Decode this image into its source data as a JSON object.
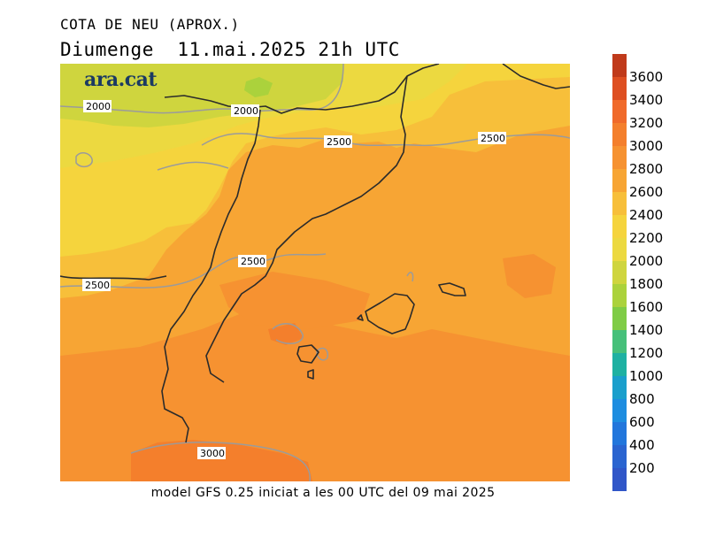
{
  "title": "COTA DE NEU (APROX.)",
  "subtitle": "Diumenge  11.mai.2025 21h UTC",
  "logo": "ara.cat",
  "caption": "model GFS 0.25 iniciat a les 00 UTC del 09 mai 2025",
  "contour_labels": [
    "2000",
    "2000",
    "2500",
    "2500",
    "2500",
    "2500",
    "3000"
  ],
  "legend": {
    "ticks": [
      "3600",
      "3400",
      "3200",
      "3000",
      "2800",
      "2600",
      "2400",
      "2200",
      "2000",
      "1800",
      "1600",
      "1400",
      "1200",
      "1000",
      "800",
      "600",
      "400",
      "200"
    ],
    "colors": [
      "#c03a1b",
      "#de4f22",
      "#f06a2a",
      "#f47f2c",
      "#f69231",
      "#f7a534",
      "#f7bf3a",
      "#f5d43d",
      "#ecd940",
      "#cfd53e",
      "#abd23c",
      "#7fcc46",
      "#46c07a",
      "#1eb1a2",
      "#1a9fcc",
      "#1d8de0",
      "#2276dc",
      "#2a64d0",
      "#3056c8"
    ]
  }
}
